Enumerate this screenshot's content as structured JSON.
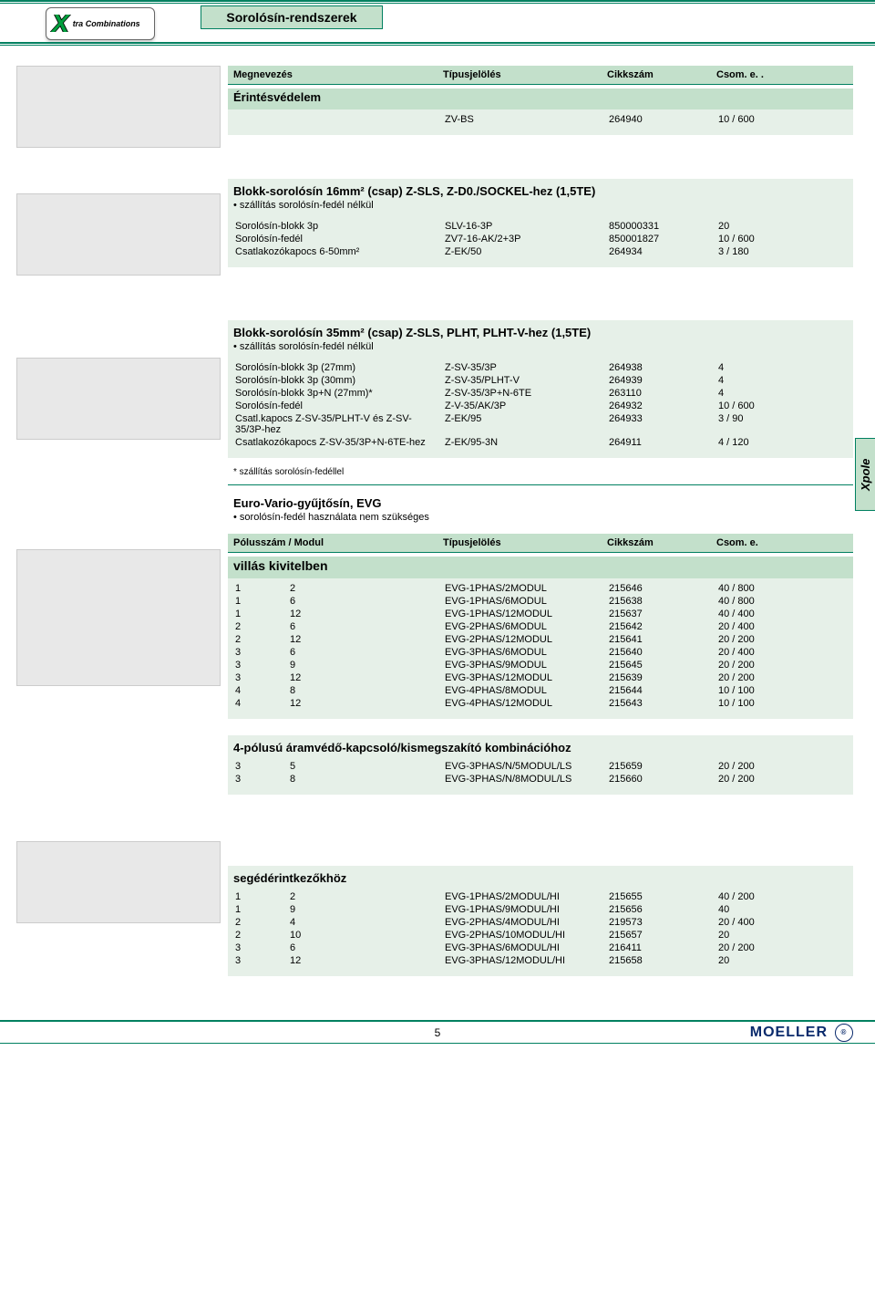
{
  "header": {
    "chapter_title": "Sorolósín-rendszerek",
    "logo_sub": "tra Combinations"
  },
  "tab": "Xpole",
  "colhead": {
    "c1": "Megnevezés",
    "c2": "Típusjelölés",
    "c3": "Cikkszám",
    "c4": "Csom. e. ."
  },
  "colhead2": {
    "c1": "Pólusszám / Modul",
    "c2": "Típusjelölés",
    "c3": "Cikkszám",
    "c4": "Csom. e."
  },
  "g0": {
    "title": "Érintésvédelem",
    "rows": [
      {
        "c1": "",
        "c2": "ZV-BS",
        "c3": "264940",
        "c4": "10 / 600"
      }
    ]
  },
  "g1": {
    "title": "Blokk-sorolósín 16mm² (csap) Z-SLS, Z-D0./SOCKEL-hez (1,5TE)",
    "note": "szállítás sorolósín-fedél nélkül",
    "rows": [
      {
        "c1": "Sorolósín-blokk 3p",
        "c2": "SLV-16-3P",
        "c3": "850000331",
        "c4": "20"
      },
      {
        "c1": "Sorolósín-fedél",
        "c2": "ZV7-16-AK/2+3P",
        "c3": "850001827",
        "c4": "10 / 600"
      },
      {
        "c1": "Csatlakozókapocs 6-50mm²",
        "c2": "Z-EK/50",
        "c3": "264934",
        "c4": "3 / 180"
      }
    ]
  },
  "g2": {
    "title": "Blokk-sorolósín 35mm² (csap) Z-SLS, PLHT, PLHT-V-hez (1,5TE)",
    "note": "szállítás sorolósín-fedél nélkül",
    "rows": [
      {
        "c1": "Sorolósín-blokk 3p (27mm)",
        "c2": "Z-SV-35/3P",
        "c3": "264938",
        "c4": "4"
      },
      {
        "c1": "Sorolósín-blokk 3p (30mm)",
        "c2": "Z-SV-35/PLHT-V",
        "c3": "264939",
        "c4": "4"
      },
      {
        "c1": "Sorolósín-blokk 3p+N (27mm)*",
        "c2": "Z-SV-35/3P+N-6TE",
        "c3": "263110",
        "c4": "4"
      },
      {
        "c1": "Sorolósín-fedél",
        "c2": "Z-V-35/AK/3P",
        "c3": "264932",
        "c4": "10 / 600"
      },
      {
        "c1": "Csatl.kapocs Z-SV-35/PLHT-V és Z-SV-35/3P-hez",
        "c2": "Z-EK/95",
        "c3": "264933",
        "c4": "3 / 90"
      },
      {
        "c1": "Csatlakozókapocs Z-SV-35/3P+N-6TE-hez",
        "c2": "Z-EK/95-3N",
        "c3": "264911",
        "c4": "4 / 120"
      }
    ],
    "star": "* szállítás sorolósín-fedéllel"
  },
  "g3": {
    "title": "Euro-Vario-gyűjtősín, EVG",
    "note": "sorolósín-fedél használata nem szükséges"
  },
  "villas": {
    "title": "villás kivitelben",
    "rows": [
      {
        "a": "1",
        "b": "2",
        "c2": "EVG-1PHAS/2MODUL",
        "c3": "215646",
        "c4": "40 / 800"
      },
      {
        "a": "1",
        "b": "6",
        "c2": "EVG-1PHAS/6MODUL",
        "c3": "215638",
        "c4": "40 / 800"
      },
      {
        "a": "1",
        "b": "12",
        "c2": "EVG-1PHAS/12MODUL",
        "c3": "215637",
        "c4": "40 / 400"
      },
      {
        "a": "2",
        "b": "6",
        "c2": "EVG-2PHAS/6MODUL",
        "c3": "215642",
        "c4": "20 / 400"
      },
      {
        "a": "2",
        "b": "12",
        "c2": "EVG-2PHAS/12MODUL",
        "c3": "215641",
        "c4": "20 / 200"
      },
      {
        "a": "3",
        "b": "6",
        "c2": "EVG-3PHAS/6MODUL",
        "c3": "215640",
        "c4": "20 / 400"
      },
      {
        "a": "3",
        "b": "9",
        "c2": "EVG-3PHAS/9MODUL",
        "c3": "215645",
        "c4": "20 / 200"
      },
      {
        "a": "3",
        "b": "12",
        "c2": "EVG-3PHAS/12MODUL",
        "c3": "215639",
        "c4": "20 / 200"
      },
      {
        "a": "4",
        "b": "8",
        "c2": "EVG-4PHAS/8MODUL",
        "c3": "215644",
        "c4": "10 / 100"
      },
      {
        "a": "4",
        "b": "12",
        "c2": "EVG-4PHAS/12MODUL",
        "c3": "215643",
        "c4": "10 / 100"
      }
    ]
  },
  "fourpole": {
    "title": "4-pólusú áramvédő-kapcsoló/kismegszakító kombinációhoz",
    "rows": [
      {
        "a": "3",
        "b": "5",
        "c2": "EVG-3PHAS/N/5MODUL/LS",
        "c3": "215659",
        "c4": "20 / 200"
      },
      {
        "a": "3",
        "b": "8",
        "c2": "EVG-3PHAS/N/8MODUL/LS",
        "c3": "215660",
        "c4": "20 / 200"
      }
    ]
  },
  "aux": {
    "title": "segédérintkezőkhöz",
    "rows": [
      {
        "a": "1",
        "b": "2",
        "c2": "EVG-1PHAS/2MODUL/HI",
        "c3": "215655",
        "c4": "40 / 200"
      },
      {
        "a": "1",
        "b": "9",
        "c2": "EVG-1PHAS/9MODUL/HI",
        "c3": "215656",
        "c4": "40"
      },
      {
        "a": "2",
        "b": "4",
        "c2": "EVG-2PHAS/4MODUL/HI",
        "c3": "219573",
        "c4": "20 / 400"
      },
      {
        "a": "2",
        "b": "10",
        "c2": "EVG-2PHAS/10MODUL/HI",
        "c3": "215657",
        "c4": "20"
      },
      {
        "a": "3",
        "b": "6",
        "c2": "EVG-3PHAS/6MODUL/HI",
        "c3": "216411",
        "c4": "20 / 200"
      },
      {
        "a": "3",
        "b": "12",
        "c2": "EVG-3PHAS/12MODUL/HI",
        "c3": "215658",
        "c4": "20"
      }
    ]
  },
  "footer": {
    "page": "5",
    "brand": "MOELLER"
  },
  "colors": {
    "accent": "#008060",
    "light_bg": "#e6f0e8",
    "header_bg": "#c3e0cb"
  }
}
